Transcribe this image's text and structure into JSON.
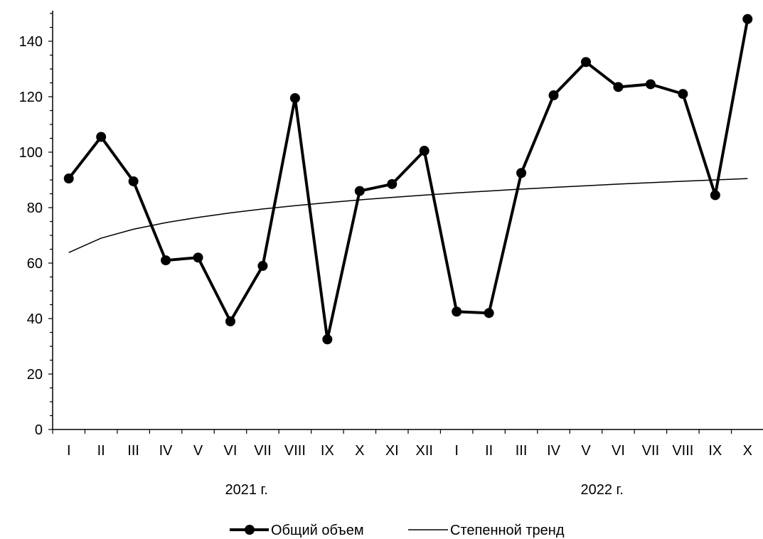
{
  "chart_data": {
    "type": "line",
    "categories": [
      "I",
      "II",
      "III",
      "IV",
      "V",
      "VI",
      "VII",
      "VIII",
      "IX",
      "X",
      "XI",
      "XII",
      "I",
      "II",
      "III",
      "IV",
      "V",
      "VI",
      "VII",
      "VIII",
      "IX",
      "X"
    ],
    "groups": [
      {
        "label": "2021 г.",
        "start": 0,
        "end": 11
      },
      {
        "label": "2022 г.",
        "start": 12,
        "end": 21
      }
    ],
    "series": [
      {
        "name": "Общий объем",
        "style": "line-with-markers",
        "color": "#000000",
        "values": [
          90.5,
          105.5,
          89.5,
          61,
          62,
          39,
          59,
          119.5,
          32.5,
          86,
          88.5,
          100.5,
          42.5,
          42,
          92.5,
          120.5,
          132.5,
          123.5,
          124.5,
          121,
          84.5,
          148
        ]
      },
      {
        "name": "Степенной тренд",
        "style": "thin-line",
        "color": "#000000",
        "values": [
          63.8,
          69.0,
          72.2,
          74.6,
          76.5,
          78.1,
          79.5,
          80.7,
          81.8,
          82.8,
          83.7,
          84.5,
          85.3,
          86.0,
          86.7,
          87.3,
          87.9,
          88.5,
          89.0,
          89.5,
          90.0,
          90.5
        ]
      }
    ],
    "ylim": [
      0,
      150
    ],
    "yticks": [
      0,
      20,
      40,
      60,
      80,
      100,
      120,
      140
    ],
    "title": "",
    "xlabel": "",
    "ylabel": "",
    "grid": false,
    "legend": "bottom-center"
  }
}
